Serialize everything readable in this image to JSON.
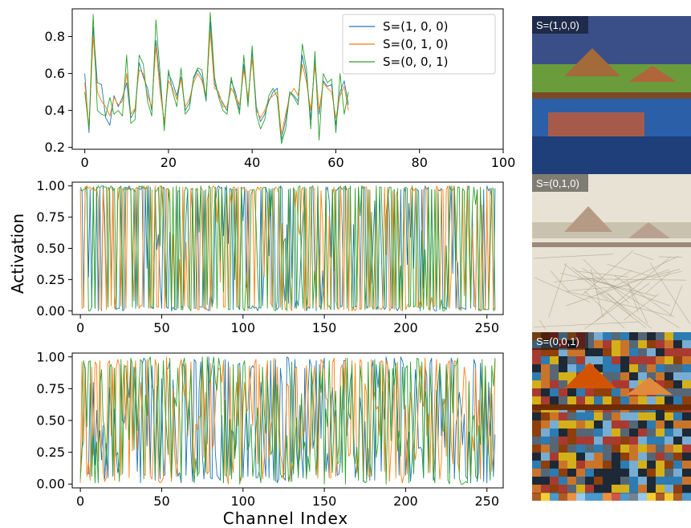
{
  "figure": {
    "ylabel": "Activation",
    "xlabel": "Channel Index"
  },
  "colors": {
    "s100": "#1f77b4",
    "s010": "#ff7f0e",
    "s001": "#2ca02c",
    "frame": "#000000"
  },
  "thumbnails": [
    {
      "label": "S=(1,0,0)",
      "style": "natural photo: thatched pavilions on a wooden pier, blue lake, red sky reflections"
    },
    {
      "label": "S=(0,1,0)",
      "style": "pale washed-out sketch style rendering of the pier scene"
    },
    {
      "label": "S=(0,0,1)",
      "style": "dense colorful mosaic painting style rendering of the pier scene"
    }
  ],
  "chart_data": [
    {
      "type": "line",
      "xlim": [
        -3,
        100
      ],
      "ylim": [
        0.19,
        0.95
      ],
      "xticks": [
        "0",
        "20",
        "40",
        "60",
        "80",
        "100"
      ],
      "yticks": [
        "0.2",
        "0.4",
        "0.6",
        "0.8"
      ],
      "legend": "top-right",
      "x": [
        0,
        1,
        2,
        3,
        4,
        5,
        6,
        7,
        8,
        9,
        10,
        11,
        12,
        13,
        14,
        15,
        16,
        17,
        18,
        19,
        20,
        21,
        22,
        23,
        24,
        25,
        26,
        27,
        28,
        29,
        30,
        31,
        32,
        33,
        34,
        35,
        36,
        37,
        38,
        39,
        40,
        41,
        42,
        43,
        44,
        45,
        46,
        47,
        48,
        49,
        50,
        51,
        52,
        53,
        54,
        55,
        56,
        57,
        58,
        59,
        60,
        61,
        62,
        63
      ],
      "series": [
        {
          "name": "S=(1, 0, 0)",
          "values": [
            0.6,
            0.28,
            0.85,
            0.55,
            0.54,
            0.36,
            0.32,
            0.48,
            0.42,
            0.47,
            0.55,
            0.36,
            0.4,
            0.66,
            0.58,
            0.52,
            0.4,
            0.78,
            0.55,
            0.32,
            0.6,
            0.55,
            0.48,
            0.58,
            0.4,
            0.44,
            0.57,
            0.62,
            0.58,
            0.45,
            0.88,
            0.55,
            0.48,
            0.44,
            0.4,
            0.56,
            0.5,
            0.4,
            0.65,
            0.45,
            0.72,
            0.42,
            0.34,
            0.38,
            0.45,
            0.5,
            0.52,
            0.24,
            0.35,
            0.5,
            0.48,
            0.45,
            0.7,
            0.58,
            0.35,
            0.68,
            0.38,
            0.56,
            0.53,
            0.54,
            0.32,
            0.5,
            0.56,
            0.43
          ]
        },
        {
          "name": "S=(0, 1, 0)",
          "values": [
            0.55,
            0.31,
            0.8,
            0.5,
            0.45,
            0.42,
            0.37,
            0.47,
            0.43,
            0.45,
            0.6,
            0.38,
            0.41,
            0.62,
            0.6,
            0.48,
            0.42,
            0.75,
            0.5,
            0.34,
            0.56,
            0.52,
            0.46,
            0.57,
            0.42,
            0.46,
            0.55,
            0.6,
            0.56,
            0.48,
            0.83,
            0.52,
            0.5,
            0.42,
            0.42,
            0.52,
            0.48,
            0.43,
            0.62,
            0.47,
            0.68,
            0.4,
            0.36,
            0.4,
            0.46,
            0.48,
            0.5,
            0.27,
            0.38,
            0.48,
            0.52,
            0.48,
            0.65,
            0.55,
            0.4,
            0.64,
            0.4,
            0.55,
            0.52,
            0.5,
            0.36,
            0.48,
            0.53,
            0.4
          ]
        },
        {
          "name": "S=(0, 0, 1)",
          "values": [
            0.5,
            0.3,
            0.92,
            0.4,
            0.38,
            0.37,
            0.47,
            0.38,
            0.4,
            0.37,
            0.7,
            0.33,
            0.35,
            0.7,
            0.65,
            0.45,
            0.37,
            0.89,
            0.6,
            0.29,
            0.62,
            0.5,
            0.42,
            0.63,
            0.38,
            0.41,
            0.58,
            0.63,
            0.62,
            0.46,
            0.93,
            0.58,
            0.47,
            0.4,
            0.38,
            0.58,
            0.47,
            0.38,
            0.7,
            0.42,
            0.75,
            0.38,
            0.3,
            0.35,
            0.48,
            0.52,
            0.47,
            0.22,
            0.3,
            0.5,
            0.47,
            0.43,
            0.76,
            0.62,
            0.3,
            0.72,
            0.24,
            0.6,
            0.55,
            0.57,
            0.28,
            0.6,
            0.38,
            0.5
          ]
        }
      ]
    },
    {
      "type": "line",
      "xlim": [
        -5,
        260
      ],
      "ylim": [
        -0.03,
        1.03
      ],
      "xticks": [
        "0",
        "50",
        "100",
        "150",
        "200",
        "250"
      ],
      "yticks": [
        "0.00",
        "0.25",
        "0.50",
        "0.75",
        "1.00"
      ],
      "n_points": 256,
      "series_seeds": [
        11,
        23,
        37
      ],
      "series_names": [
        "S=(1, 0, 0)",
        "S=(0, 1, 0)",
        "S=(0, 0, 1)"
      ],
      "pattern": "binary-like activations clustered near 0 and 1"
    },
    {
      "type": "line",
      "xlim": [
        -5,
        260
      ],
      "ylim": [
        -0.03,
        1.03
      ],
      "xticks": [
        "0",
        "50",
        "100",
        "150",
        "200",
        "250"
      ],
      "yticks": [
        "0.00",
        "0.25",
        "0.50",
        "0.75",
        "1.00"
      ],
      "n_points": 256,
      "series_seeds": [
        41,
        53,
        67
      ],
      "series_names": [
        "S=(1, 0, 0)",
        "S=(0, 1, 0)",
        "S=(0, 0, 1)"
      ],
      "pattern": "mixed activations spread across 0 to 1"
    }
  ]
}
